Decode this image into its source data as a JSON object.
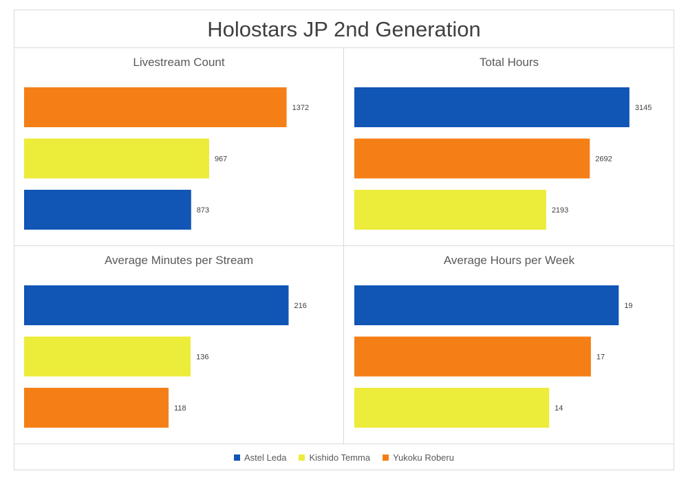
{
  "title": "Holostars JP 2nd Generation",
  "legend": [
    {
      "name": "Astel Leda",
      "color": "#1155b5"
    },
    {
      "name": "Kishido Temma",
      "color": "#ecec3a"
    },
    {
      "name": "Yukoku Roberu",
      "color": "#f57f17"
    }
  ],
  "chart_data": [
    {
      "type": "bar",
      "title": "Livestream Count",
      "bars": [
        {
          "series": "Yukoku Roberu",
          "value": 1372
        },
        {
          "series": "Kishido Temma",
          "value": 967
        },
        {
          "series": "Astel Leda",
          "value": 873
        }
      ],
      "xlim": [
        0,
        1600
      ]
    },
    {
      "type": "bar",
      "title": "Total Hours",
      "bars": [
        {
          "series": "Astel Leda",
          "value": 3145
        },
        {
          "series": "Yukoku Roberu",
          "value": 2692
        },
        {
          "series": "Kishido Temma",
          "value": 2193
        }
      ],
      "xlim": [
        0,
        3500
      ]
    },
    {
      "type": "bar",
      "title": "Average Minutes per Stream",
      "bars": [
        {
          "series": "Astel Leda",
          "value": 216
        },
        {
          "series": "Kishido Temma",
          "value": 136
        },
        {
          "series": "Yukoku Roberu",
          "value": 118
        }
      ],
      "xlim": [
        0,
        250
      ]
    },
    {
      "type": "bar",
      "title": "Average Hours per Week",
      "bars": [
        {
          "series": "Astel Leda",
          "value": 19
        },
        {
          "series": "Yukoku Roberu",
          "value": 17
        },
        {
          "series": "Kishido Temma",
          "value": 14
        }
      ],
      "xlim": [
        0,
        22
      ]
    }
  ]
}
